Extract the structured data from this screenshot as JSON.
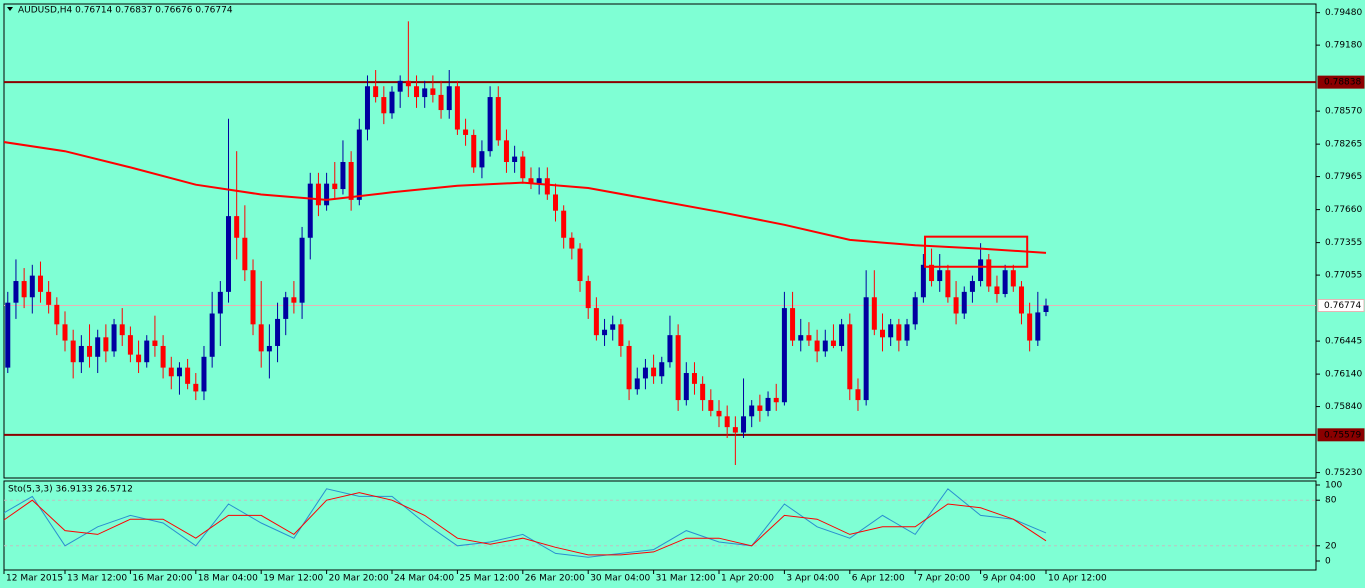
{
  "chart_data": {
    "type": "candlestick",
    "title": "AUDUSD,H4  0.76714 0.76837 0.76676 0.76774",
    "categories": [
      "12 Mar 2015",
      null,
      null,
      null,
      null,
      null,
      null,
      null,
      "13 Mar 12:00",
      null,
      null,
      null,
      null,
      null,
      null,
      null,
      "16 Mar 20:00",
      null,
      null,
      null,
      null,
      null,
      null,
      null,
      "18 Mar 04:00",
      null,
      null,
      null,
      null,
      null,
      null,
      null,
      "19 Mar 12:00",
      null,
      null,
      null,
      null,
      null,
      null,
      null,
      "20 Mar 20:00",
      null,
      null,
      null,
      null,
      null,
      null,
      null,
      "24 Mar 04:00",
      null,
      null,
      null,
      null,
      null,
      null,
      null,
      "25 Mar 12:00",
      null,
      null,
      null,
      null,
      null,
      null,
      null,
      "26 Mar 20:00",
      null,
      null,
      null,
      null,
      null,
      null,
      null,
      "30 Mar 04:00",
      null,
      null,
      null,
      null,
      null,
      null,
      null,
      "31 Mar 12:00",
      null,
      null,
      null,
      null,
      null,
      null,
      null,
      "1 Apr 20:00",
      null,
      null,
      null,
      null,
      null,
      null,
      null,
      "3 Apr 04:00",
      null,
      null,
      null,
      null,
      null,
      null,
      null,
      "6 Apr 12:00",
      null,
      null,
      null,
      null,
      null,
      null,
      null,
      "7 Apr 20:00",
      null,
      null,
      null,
      null,
      null,
      null,
      null,
      "9 Apr 04:00",
      null,
      null,
      null,
      null,
      null,
      null,
      null,
      "10 Apr 12:00"
    ],
    "ohlc": [
      [
        0.759,
        0.763,
        0.757,
        0.762
      ],
      [
        0.762,
        0.769,
        0.7615,
        0.768
      ],
      [
        0.768,
        0.772,
        0.7665,
        0.77
      ],
      [
        0.77,
        0.7712,
        0.7675,
        0.7685
      ],
      [
        0.7685,
        0.7715,
        0.767,
        0.7705
      ],
      [
        0.7705,
        0.7718,
        0.768,
        0.769
      ],
      [
        0.769,
        0.77,
        0.767,
        0.7678
      ],
      [
        0.7678,
        0.7685,
        0.765,
        0.766
      ],
      [
        0.766,
        0.7672,
        0.7635,
        0.7645
      ],
      [
        0.7645,
        0.7655,
        0.761,
        0.7625
      ],
      [
        0.7625,
        0.765,
        0.7615,
        0.764
      ],
      [
        0.764,
        0.766,
        0.762,
        0.763
      ],
      [
        0.763,
        0.7655,
        0.7615,
        0.7648
      ],
      [
        0.7648,
        0.766,
        0.7625,
        0.7635
      ],
      [
        0.7635,
        0.7665,
        0.763,
        0.766
      ],
      [
        0.766,
        0.7675,
        0.764,
        0.765
      ],
      [
        0.765,
        0.7658,
        0.7625,
        0.7632
      ],
      [
        0.7632,
        0.7645,
        0.7615,
        0.7625
      ],
      [
        0.7625,
        0.765,
        0.762,
        0.7645
      ],
      [
        0.7645,
        0.7668,
        0.763,
        0.764
      ],
      [
        0.764,
        0.765,
        0.761,
        0.762
      ],
      [
        0.762,
        0.763,
        0.76,
        0.7612
      ],
      [
        0.7612,
        0.7625,
        0.7595,
        0.762
      ],
      [
        0.762,
        0.7628,
        0.76,
        0.7605
      ],
      [
        0.7605,
        0.7615,
        0.759,
        0.7598
      ],
      [
        0.7598,
        0.764,
        0.759,
        0.763
      ],
      [
        0.763,
        0.769,
        0.762,
        0.767
      ],
      [
        0.767,
        0.77,
        0.764,
        0.769
      ],
      [
        0.769,
        0.785,
        0.768,
        0.776
      ],
      [
        0.776,
        0.782,
        0.772,
        0.774
      ],
      [
        0.774,
        0.777,
        0.77,
        0.771
      ],
      [
        0.771,
        0.772,
        0.765,
        0.766
      ],
      [
        0.766,
        0.77,
        0.762,
        0.7635
      ],
      [
        0.7635,
        0.766,
        0.761,
        0.764
      ],
      [
        0.764,
        0.768,
        0.7625,
        0.7665
      ],
      [
        0.7665,
        0.769,
        0.765,
        0.7685
      ],
      [
        0.7685,
        0.77,
        0.767,
        0.768
      ],
      [
        0.768,
        0.775,
        0.7665,
        0.774
      ],
      [
        0.774,
        0.78,
        0.772,
        0.779
      ],
      [
        0.779,
        0.78,
        0.776,
        0.777
      ],
      [
        0.777,
        0.78,
        0.7765,
        0.779
      ],
      [
        0.779,
        0.781,
        0.7775,
        0.7785
      ],
      [
        0.7785,
        0.783,
        0.778,
        0.781
      ],
      [
        0.781,
        0.782,
        0.7765,
        0.7775
      ],
      [
        0.7775,
        0.785,
        0.777,
        0.784
      ],
      [
        0.784,
        0.789,
        0.783,
        0.788
      ],
      [
        0.788,
        0.7895,
        0.7865,
        0.787
      ],
      [
        0.787,
        0.788,
        0.7845,
        0.7855
      ],
      [
        0.7855,
        0.788,
        0.785,
        0.7875
      ],
      [
        0.7875,
        0.789,
        0.786,
        0.7885
      ],
      [
        0.7885,
        0.794,
        0.787,
        0.788
      ],
      [
        0.788,
        0.789,
        0.786,
        0.787
      ],
      [
        0.787,
        0.7885,
        0.786,
        0.7878
      ],
      [
        0.7878,
        0.789,
        0.7865,
        0.7872
      ],
      [
        0.7872,
        0.7885,
        0.785,
        0.7858
      ],
      [
        0.7858,
        0.7895,
        0.785,
        0.788
      ],
      [
        0.788,
        0.7885,
        0.7835,
        0.784
      ],
      [
        0.784,
        0.785,
        0.7825,
        0.7835
      ],
      [
        0.7835,
        0.784,
        0.78,
        0.7805
      ],
      [
        0.7805,
        0.783,
        0.7795,
        0.782
      ],
      [
        0.782,
        0.788,
        0.7815,
        0.787
      ],
      [
        0.787,
        0.788,
        0.7825,
        0.783
      ],
      [
        0.783,
        0.784,
        0.78,
        0.781
      ],
      [
        0.781,
        0.7825,
        0.78,
        0.7815
      ],
      [
        0.7815,
        0.782,
        0.779,
        0.7795
      ],
      [
        0.7795,
        0.7805,
        0.7785,
        0.779
      ],
      [
        0.779,
        0.7805,
        0.778,
        0.7795
      ],
      [
        0.7795,
        0.7805,
        0.7775,
        0.778
      ],
      [
        0.778,
        0.779,
        0.7755,
        0.7765
      ],
      [
        0.7765,
        0.777,
        0.773,
        0.774
      ],
      [
        0.774,
        0.7745,
        0.772,
        0.773
      ],
      [
        0.773,
        0.7735,
        0.769,
        0.77
      ],
      [
        0.77,
        0.7705,
        0.7665,
        0.7675
      ],
      [
        0.7675,
        0.7685,
        0.7645,
        0.765
      ],
      [
        0.765,
        0.7665,
        0.764,
        0.7655
      ],
      [
        0.7655,
        0.7668,
        0.7645,
        0.766
      ],
      [
        0.766,
        0.7665,
        0.763,
        0.764
      ],
      [
        0.764,
        0.7645,
        0.759,
        0.76
      ],
      [
        0.76,
        0.762,
        0.7595,
        0.761
      ],
      [
        0.761,
        0.7628,
        0.76,
        0.762
      ],
      [
        0.762,
        0.7632,
        0.7605,
        0.7612
      ],
      [
        0.7612,
        0.763,
        0.7605,
        0.7625
      ],
      [
        0.7625,
        0.7668,
        0.762,
        0.765
      ],
      [
        0.765,
        0.766,
        0.758,
        0.759
      ],
      [
        0.759,
        0.7625,
        0.7585,
        0.7615
      ],
      [
        0.7615,
        0.7625,
        0.7595,
        0.7605
      ],
      [
        0.7605,
        0.7612,
        0.758,
        0.759
      ],
      [
        0.759,
        0.76,
        0.7575,
        0.758
      ],
      [
        0.758,
        0.759,
        0.7565,
        0.7575
      ],
      [
        0.7575,
        0.7585,
        0.7555,
        0.7565
      ],
      [
        0.7565,
        0.7575,
        0.753,
        0.756
      ],
      [
        0.756,
        0.761,
        0.7555,
        0.7575
      ],
      [
        0.7575,
        0.759,
        0.7565,
        0.7585
      ],
      [
        0.7585,
        0.7595,
        0.757,
        0.758
      ],
      [
        0.758,
        0.7598,
        0.7575,
        0.7592
      ],
      [
        0.7592,
        0.7605,
        0.758,
        0.7588
      ],
      [
        0.7588,
        0.769,
        0.7585,
        0.7675
      ],
      [
        0.7675,
        0.769,
        0.764,
        0.7645
      ],
      [
        0.7645,
        0.7665,
        0.7635,
        0.765
      ],
      [
        0.765,
        0.7662,
        0.764,
        0.7645
      ],
      [
        0.7645,
        0.7655,
        0.7625,
        0.7635
      ],
      [
        0.7635,
        0.7655,
        0.763,
        0.7645
      ],
      [
        0.7645,
        0.766,
        0.7638,
        0.764
      ],
      [
        0.764,
        0.7665,
        0.7635,
        0.766
      ],
      [
        0.766,
        0.767,
        0.759,
        0.76
      ],
      [
        0.76,
        0.761,
        0.758,
        0.759
      ],
      [
        0.759,
        0.771,
        0.7585,
        0.7685
      ],
      [
        0.7685,
        0.771,
        0.765,
        0.7655
      ],
      [
        0.7655,
        0.767,
        0.7635,
        0.7648
      ],
      [
        0.7648,
        0.7665,
        0.764,
        0.766
      ],
      [
        0.766,
        0.7665,
        0.7635,
        0.7645
      ],
      [
        0.7645,
        0.7665,
        0.764,
        0.766
      ],
      [
        0.766,
        0.769,
        0.7655,
        0.7685
      ],
      [
        0.7685,
        0.7725,
        0.768,
        0.7715
      ],
      [
        0.7715,
        0.773,
        0.7695,
        0.77
      ],
      [
        0.77,
        0.7725,
        0.769,
        0.771
      ],
      [
        0.771,
        0.7715,
        0.768,
        0.7685
      ],
      [
        0.7685,
        0.77,
        0.766,
        0.767
      ],
      [
        0.767,
        0.7695,
        0.7665,
        0.769
      ],
      [
        0.769,
        0.7705,
        0.768,
        0.77
      ],
      [
        0.77,
        0.7735,
        0.7695,
        0.772
      ],
      [
        0.772,
        0.7725,
        0.769,
        0.7695
      ],
      [
        0.7695,
        0.7705,
        0.768,
        0.7688
      ],
      [
        0.7688,
        0.7715,
        0.7685,
        0.771
      ],
      [
        0.771,
        0.7715,
        0.769,
        0.7695
      ],
      [
        0.7695,
        0.77,
        0.766,
        0.767
      ],
      [
        0.767,
        0.768,
        0.7635,
        0.7645
      ],
      [
        0.7645,
        0.769,
        0.764,
        0.7671
      ],
      [
        0.76714,
        0.76837,
        0.76676,
        0.76774
      ]
    ],
    "up_color": "#0000a0",
    "down_color": "#ff0000",
    "ylim": [
      0.7518,
      0.7956
    ],
    "yticks": [
      {
        "value": 0.7948,
        "label": "0.79480"
      },
      {
        "value": 0.7918,
        "label": "0.79180"
      },
      {
        "value": 0.7857,
        "label": "0.78570"
      },
      {
        "value": 0.78265,
        "label": "0.78265"
      },
      {
        "value": 0.77965,
        "label": "0.77965"
      },
      {
        "value": 0.7766,
        "label": "0.77660"
      },
      {
        "value": 0.77355,
        "label": "0.77355"
      },
      {
        "value": 0.77055,
        "label": "0.77055"
      },
      {
        "value": 0.76445,
        "label": "0.76445"
      },
      {
        "value": 0.7614,
        "label": "0.76140"
      },
      {
        "value": 0.7584,
        "label": "0.75840"
      },
      {
        "value": 0.7523,
        "label": "0.75230"
      }
    ],
    "hlines": [
      {
        "value": 0.78838,
        "label": "0.78838",
        "color": "#8b0000",
        "box_fill": "#8b0000",
        "text_color": "#ffffff"
      },
      {
        "value": 0.76774,
        "label": "0.76774",
        "color": "#e8b4b4",
        "box_fill": "#ffffff",
        "text_color": "#000000"
      },
      {
        "value": 0.75579,
        "label": "0.75579",
        "color": "#8b0000",
        "box_fill": "#8b0000",
        "text_color": "#ffffff"
      }
    ],
    "ma": {
      "color": "#ff0000",
      "x": [
        0,
        8,
        16,
        24,
        32,
        40,
        48,
        56,
        64,
        72,
        80,
        88,
        96,
        104,
        112,
        120,
        128
      ],
      "values": [
        0.7829,
        0.782,
        0.7805,
        0.7789,
        0.778,
        0.7775,
        0.7782,
        0.7788,
        0.7791,
        0.7786,
        0.7775,
        0.7764,
        0.7752,
        0.7738,
        0.7733,
        0.773,
        0.7726
      ]
    },
    "box": {
      "color": "#ff0000",
      "x": [
        113.2,
        125.7
      ],
      "y": [
        0.7741,
        0.77132
      ]
    },
    "indicator": {
      "title": "Sto(5,3,3) 36.9133 26.5712",
      "ylim": [
        0,
        100
      ],
      "yticks": [
        0,
        20,
        80,
        100
      ],
      "levels": [
        20,
        80
      ],
      "series": [
        {
          "color": "#2a8fd0",
          "x": [
            0,
            4,
            8,
            12,
            16,
            20,
            24,
            28,
            32,
            36,
            40,
            44,
            48,
            52,
            56,
            60,
            64,
            68,
            72,
            76,
            80,
            84,
            88,
            92,
            96,
            100,
            104,
            108,
            112,
            116,
            120,
            124,
            128
          ],
          "values": [
            60,
            85,
            20,
            45,
            60,
            50,
            20,
            75,
            50,
            30,
            95,
            85,
            85,
            50,
            20,
            25,
            35,
            10,
            5,
            10,
            15,
            40,
            25,
            20,
            75,
            45,
            30,
            60,
            35,
            95,
            60,
            55,
            36.9133
          ]
        },
        {
          "color": "#ff0000",
          "x": [
            0,
            4,
            8,
            12,
            16,
            20,
            24,
            28,
            32,
            36,
            40,
            44,
            48,
            52,
            56,
            60,
            64,
            68,
            72,
            76,
            80,
            84,
            88,
            92,
            96,
            100,
            104,
            108,
            112,
            116,
            120,
            124,
            128
          ],
          "values": [
            50,
            80,
            40,
            35,
            55,
            55,
            30,
            60,
            60,
            35,
            80,
            90,
            80,
            60,
            30,
            22,
            30,
            18,
            8,
            8,
            12,
            30,
            30,
            20,
            60,
            55,
            35,
            45,
            45,
            75,
            70,
            55,
            26.5712
          ]
        }
      ]
    }
  }
}
